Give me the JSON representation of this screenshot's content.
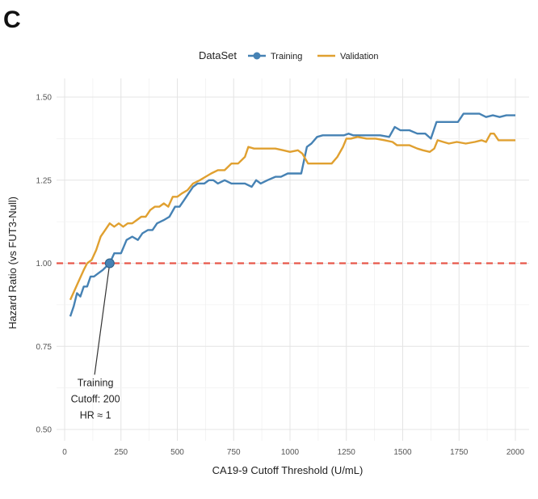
{
  "panel_label": "C",
  "chart_data": {
    "type": "line",
    "title": "",
    "xlabel": "CA19-9 Cutoff Threshold (U/mL)",
    "ylabel": "Hazard Ratio (vs FUT3-Null)",
    "xlim": [
      0,
      2050
    ],
    "ylim": [
      0.48,
      1.54
    ],
    "x_ticks": [
      0,
      250,
      500,
      750,
      1000,
      1250,
      1500,
      1750,
      2000
    ],
    "x_tick_labels": [
      "0",
      "250",
      "500",
      "750",
      "1000",
      "1250",
      "1500",
      "1750",
      "2000"
    ],
    "y_ticks": [
      0.5,
      0.75,
      1.0,
      1.25,
      1.5
    ],
    "y_tick_labels": [
      "0.50",
      "0.75",
      "1.00",
      "1.25",
      "1.50"
    ],
    "grid": true,
    "legend": {
      "title": "DataSet",
      "position": "top"
    },
    "reference_line": {
      "y": 1.0,
      "color": "#E8574A",
      "style": "dashed"
    },
    "series": [
      {
        "name": "Training",
        "color": "#4682B4",
        "points": [
          [
            25,
            0.84
          ],
          [
            40,
            0.87
          ],
          [
            55,
            0.91
          ],
          [
            70,
            0.9
          ],
          [
            85,
            0.93
          ],
          [
            100,
            0.93
          ],
          [
            115,
            0.96
          ],
          [
            130,
            0.96
          ],
          [
            150,
            0.97
          ],
          [
            170,
            0.98
          ],
          [
            200,
            1.0
          ],
          [
            220,
            1.03
          ],
          [
            250,
            1.03
          ],
          [
            275,
            1.07
          ],
          [
            300,
            1.08
          ],
          [
            325,
            1.07
          ],
          [
            345,
            1.09
          ],
          [
            370,
            1.1
          ],
          [
            390,
            1.1
          ],
          [
            410,
            1.12
          ],
          [
            440,
            1.13
          ],
          [
            465,
            1.14
          ],
          [
            490,
            1.17
          ],
          [
            510,
            1.17
          ],
          [
            530,
            1.19
          ],
          [
            550,
            1.21
          ],
          [
            570,
            1.23
          ],
          [
            590,
            1.24
          ],
          [
            620,
            1.24
          ],
          [
            640,
            1.25
          ],
          [
            660,
            1.25
          ],
          [
            680,
            1.24
          ],
          [
            710,
            1.25
          ],
          [
            740,
            1.24
          ],
          [
            770,
            1.24
          ],
          [
            800,
            1.24
          ],
          [
            830,
            1.23
          ],
          [
            850,
            1.25
          ],
          [
            870,
            1.24
          ],
          [
            900,
            1.25
          ],
          [
            935,
            1.26
          ],
          [
            960,
            1.26
          ],
          [
            990,
            1.27
          ],
          [
            1020,
            1.27
          ],
          [
            1050,
            1.27
          ],
          [
            1075,
            1.35
          ],
          [
            1095,
            1.36
          ],
          [
            1120,
            1.38
          ],
          [
            1145,
            1.385
          ],
          [
            1175,
            1.385
          ],
          [
            1210,
            1.385
          ],
          [
            1240,
            1.385
          ],
          [
            1260,
            1.39
          ],
          [
            1280,
            1.385
          ],
          [
            1320,
            1.385
          ],
          [
            1360,
            1.385
          ],
          [
            1400,
            1.385
          ],
          [
            1440,
            1.38
          ],
          [
            1465,
            1.41
          ],
          [
            1490,
            1.4
          ],
          [
            1530,
            1.4
          ],
          [
            1565,
            1.39
          ],
          [
            1600,
            1.39
          ],
          [
            1625,
            1.375
          ],
          [
            1650,
            1.425
          ],
          [
            1690,
            1.425
          ],
          [
            1720,
            1.425
          ],
          [
            1745,
            1.425
          ],
          [
            1770,
            1.45
          ],
          [
            1810,
            1.45
          ],
          [
            1840,
            1.45
          ],
          [
            1870,
            1.44
          ],
          [
            1900,
            1.445
          ],
          [
            1930,
            1.44
          ],
          [
            1960,
            1.445
          ],
          [
            2000,
            1.445
          ]
        ]
      },
      {
        "name": "Validation",
        "color": "#E0A030",
        "points": [
          [
            25,
            0.89
          ],
          [
            45,
            0.92
          ],
          [
            65,
            0.95
          ],
          [
            85,
            0.98
          ],
          [
            100,
            1.0
          ],
          [
            120,
            1.01
          ],
          [
            140,
            1.04
          ],
          [
            160,
            1.08
          ],
          [
            180,
            1.1
          ],
          [
            200,
            1.12
          ],
          [
            220,
            1.11
          ],
          [
            240,
            1.12
          ],
          [
            260,
            1.11
          ],
          [
            280,
            1.12
          ],
          [
            300,
            1.12
          ],
          [
            320,
            1.13
          ],
          [
            340,
            1.14
          ],
          [
            360,
            1.14
          ],
          [
            380,
            1.16
          ],
          [
            400,
            1.17
          ],
          [
            420,
            1.17
          ],
          [
            440,
            1.18
          ],
          [
            460,
            1.17
          ],
          [
            480,
            1.2
          ],
          [
            500,
            1.2
          ],
          [
            520,
            1.21
          ],
          [
            545,
            1.22
          ],
          [
            570,
            1.24
          ],
          [
            600,
            1.25
          ],
          [
            625,
            1.26
          ],
          [
            650,
            1.27
          ],
          [
            680,
            1.28
          ],
          [
            710,
            1.28
          ],
          [
            740,
            1.3
          ],
          [
            770,
            1.3
          ],
          [
            800,
            1.32
          ],
          [
            815,
            1.35
          ],
          [
            840,
            1.345
          ],
          [
            870,
            1.345
          ],
          [
            900,
            1.345
          ],
          [
            935,
            1.345
          ],
          [
            970,
            1.34
          ],
          [
            1000,
            1.335
          ],
          [
            1035,
            1.34
          ],
          [
            1055,
            1.33
          ],
          [
            1080,
            1.3
          ],
          [
            1110,
            1.3
          ],
          [
            1150,
            1.3
          ],
          [
            1185,
            1.3
          ],
          [
            1210,
            1.32
          ],
          [
            1235,
            1.35
          ],
          [
            1250,
            1.375
          ],
          [
            1270,
            1.375
          ],
          [
            1300,
            1.38
          ],
          [
            1340,
            1.375
          ],
          [
            1380,
            1.375
          ],
          [
            1420,
            1.37
          ],
          [
            1455,
            1.365
          ],
          [
            1475,
            1.355
          ],
          [
            1500,
            1.355
          ],
          [
            1530,
            1.355
          ],
          [
            1565,
            1.345
          ],
          [
            1590,
            1.34
          ],
          [
            1620,
            1.335
          ],
          [
            1640,
            1.345
          ],
          [
            1655,
            1.37
          ],
          [
            1680,
            1.365
          ],
          [
            1705,
            1.36
          ],
          [
            1740,
            1.365
          ],
          [
            1780,
            1.36
          ],
          [
            1820,
            1.365
          ],
          [
            1850,
            1.37
          ],
          [
            1870,
            1.365
          ],
          [
            1890,
            1.39
          ],
          [
            1905,
            1.39
          ],
          [
            1925,
            1.37
          ],
          [
            1960,
            1.37
          ],
          [
            2000,
            1.37
          ]
        ]
      }
    ],
    "annotation": {
      "marker": {
        "x": 200,
        "y": 1.0,
        "color": "#4682B4"
      },
      "label_anchor": {
        "x": 90,
        "y": 0.655
      },
      "lines": [
        "Training",
        "Cutoff: 200",
        "HR ≈ 1"
      ]
    }
  }
}
